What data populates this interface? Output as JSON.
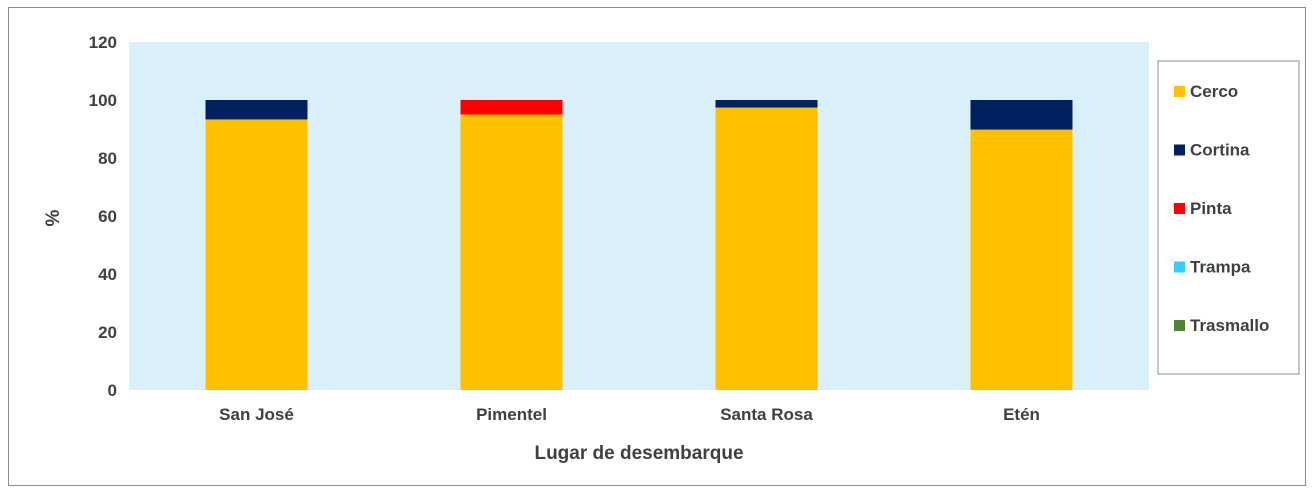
{
  "chart_data": {
    "type": "bar",
    "stacked": true,
    "categories": [
      "San José",
      "Pimentel",
      "Santa Rosa",
      "Etén"
    ],
    "series": [
      {
        "name": "Cerco",
        "color": "#FFC000",
        "values": [
          93.3,
          95.0,
          97.4,
          89.8
        ]
      },
      {
        "name": "Cortina",
        "color": "#002060",
        "values": [
          6.7,
          0,
          2.6,
          10.2
        ]
      },
      {
        "name": "Pinta",
        "color": "#FF0000",
        "values": [
          0,
          5.0,
          0,
          0
        ]
      },
      {
        "name": "Trampa",
        "color": "#33CCFF",
        "values": [
          0,
          0,
          0,
          0
        ]
      },
      {
        "name": "Trasmallo",
        "color": "#548235",
        "values": [
          0,
          0,
          0,
          0
        ]
      }
    ],
    "xlabel": "Lugar de desembarque",
    "ylabel": "%",
    "ylim": [
      0,
      120
    ],
    "yticks": [
      0,
      20,
      40,
      60,
      80,
      100,
      120
    ],
    "grid": false,
    "plot_background": "#D9F0FA",
    "legend_position": "right"
  }
}
